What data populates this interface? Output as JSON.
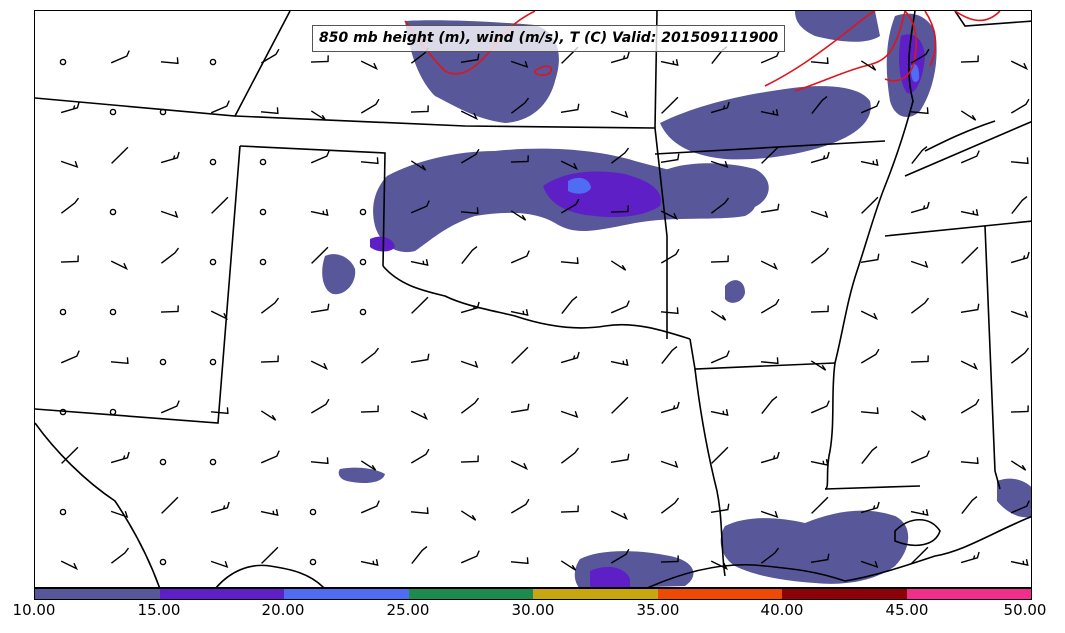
{
  "title": "850 mb height (m), wind (m/s), T (C) Valid: 201509111900",
  "colorbar": {
    "colors": [
      "#57579a",
      "#5e1fc7",
      "#4f6cf2",
      "#1f8a4f",
      "#c8a60f",
      "#ee4a05",
      "#8c0208",
      "#ef2f8c"
    ],
    "ticks": [
      "10.00",
      "15.00",
      "20.00",
      "25.00",
      "30.00",
      "35.00",
      "40.00",
      "45.00",
      "50.00"
    ]
  },
  "colors": {
    "fill_base": "#57579a",
    "fill_mid": "#5e1fc7",
    "fill_high": "#4f6cf2",
    "temperature_contour": "#e0141a",
    "borders": "#000000"
  },
  "icons": [
    "wind-barb-icon",
    "calm-wind-circle-icon"
  ]
}
